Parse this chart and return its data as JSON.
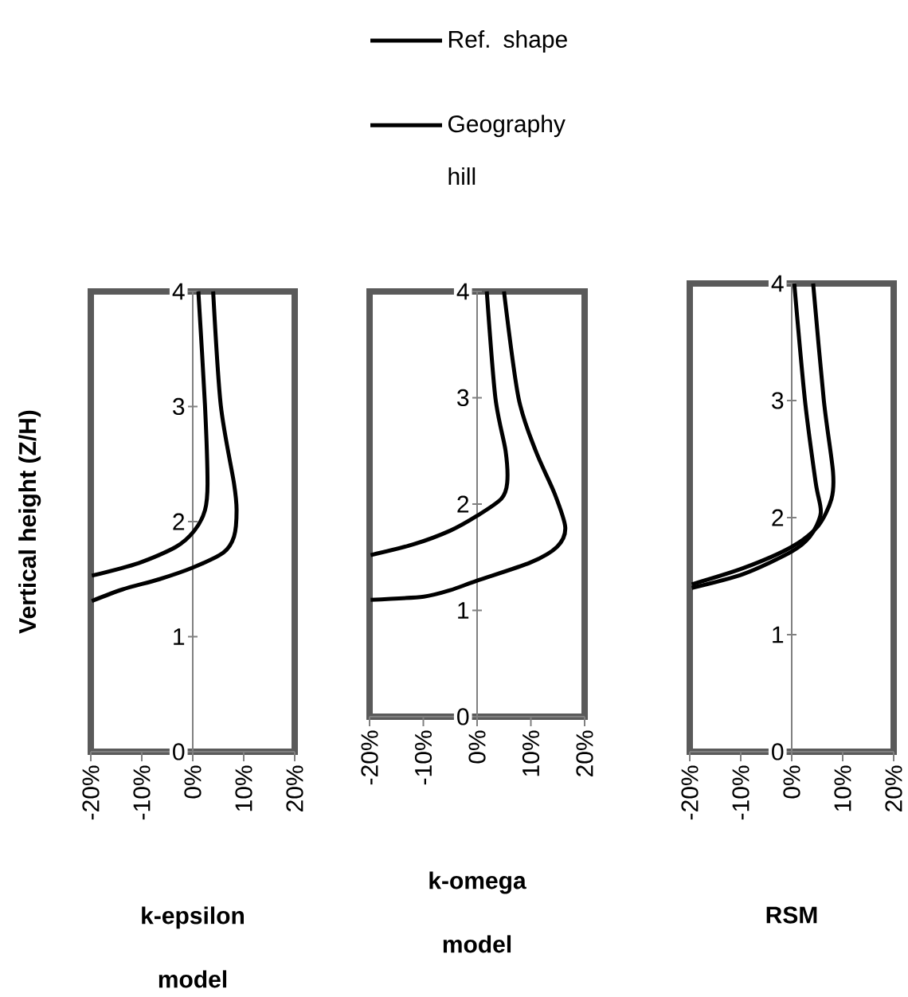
{
  "chart_data": [
    {
      "type": "line",
      "xlabel": "k-epsilon model",
      "ylabel": "Vertical height (Z/H)",
      "xlim": [
        -20,
        20
      ],
      "ylim": [
        0,
        4
      ],
      "legend": false,
      "line_style": "solid",
      "xticks": [
        {
          "value": -20,
          "label": "-20%"
        },
        {
          "value": -10,
          "label": "-10%"
        },
        {
          "value": 0,
          "label": "0%"
        },
        {
          "value": 10,
          "label": "10%"
        },
        {
          "value": 20,
          "label": "20%"
        }
      ],
      "yticks": [
        0,
        1,
        2,
        3,
        4
      ],
      "series": [
        {
          "color": "#000000",
          "x": [
            1.1,
            2.4,
            2.9,
            2.4,
            0.3,
            -3.3,
            -10.6,
            -19.8
          ],
          "values": [
            4,
            3.01,
            2.33,
            2.1,
            1.92,
            1.78,
            1.64,
            1.53
          ]
        },
        {
          "color": "#000000",
          "x": [
            4.0,
            5.5,
            8.1,
            8.6,
            8.1,
            6.0,
            0,
            -6.5,
            -13.8,
            -19.8
          ],
          "values": [
            4,
            3.01,
            2.33,
            2.1,
            1.87,
            1.73,
            1.6,
            1.5,
            1.41,
            1.31
          ]
        }
      ]
    },
    {
      "type": "line",
      "xlabel": "k-omega model",
      "xlim": [
        -20,
        20
      ],
      "ylim": [
        0,
        4
      ],
      "legend": "top",
      "line_style": "solid",
      "xticks": [
        {
          "value": -20,
          "label": "-20%"
        },
        {
          "value": -10,
          "label": "-10%"
        },
        {
          "value": 0,
          "label": "0%"
        },
        {
          "value": 10,
          "label": "10%"
        },
        {
          "value": 20,
          "label": "20%"
        }
      ],
      "yticks": [
        0,
        1,
        2,
        3,
        4
      ],
      "series": [
        {
          "name": "Ref. shape",
          "color": "#000000",
          "x": [
            1.8,
            3.4,
            5.3,
            5.6,
            4.5,
            0,
            -5,
            -11.9,
            -19.8
          ],
          "values": [
            4,
            3,
            2.5,
            2.2,
            2.05,
            1.89,
            1.75,
            1.62,
            1.52
          ]
        },
        {
          "name": "Geography hill",
          "color": "#000000",
          "x": [
            5.0,
            7.7,
            10.9,
            14.4,
            16.4,
            14.9,
            9.9,
            0,
            -5,
            -9.9,
            -19.8
          ],
          "values": [
            4,
            3,
            2.5,
            2.1,
            1.78,
            1.6,
            1.45,
            1.28,
            1.19,
            1.13,
            1.1
          ]
        }
      ]
    },
    {
      "type": "line",
      "xlabel": "RSM",
      "xlim": [
        -20,
        20
      ],
      "ylim": [
        0,
        4
      ],
      "legend": false,
      "line_style": "solid",
      "xticks": [
        {
          "value": -20,
          "label": "-20%"
        },
        {
          "value": -10,
          "label": "-10%"
        },
        {
          "value": 0,
          "label": "0%"
        },
        {
          "value": 10,
          "label": "10%"
        },
        {
          "value": 20,
          "label": "20%"
        }
      ],
      "yticks": [
        0,
        1,
        2,
        3,
        4
      ],
      "series": [
        {
          "color": "#000000",
          "x": [
            0.5,
            2.6,
            4.7,
            5.7,
            3.6,
            0,
            -9.4,
            -19.6
          ],
          "values": [
            4,
            3,
            2.3,
            2.04,
            1.84,
            1.71,
            1.52,
            1.4
          ]
        },
        {
          "color": "#000000",
          "x": [
            4.2,
            6.3,
            8.1,
            7.8,
            5.2,
            0,
            -9.4,
            -19.6
          ],
          "values": [
            4,
            3,
            2.39,
            2.16,
            1.93,
            1.75,
            1.57,
            1.43
          ]
        }
      ]
    }
  ]
}
